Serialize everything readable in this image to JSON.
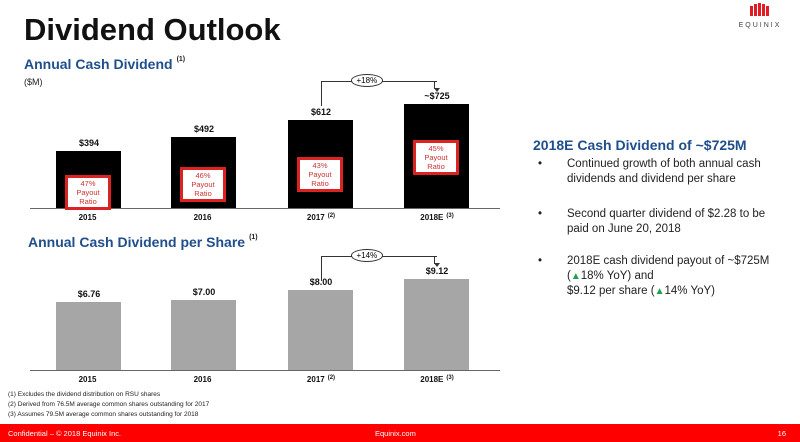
{
  "title": "Dividend Outlook",
  "logo": {
    "text": "EQUINIX",
    "color": "#e31b23"
  },
  "chart_data": [
    {
      "type": "bar",
      "title": "Annual Cash Dividend",
      "title_note": "(1)",
      "unit": "($M)",
      "categories": [
        "2015",
        "2016",
        "2017",
        "2018E"
      ],
      "category_notes": [
        "",
        "",
        "(2)",
        "(3)"
      ],
      "values": [
        394,
        492,
        612,
        725
      ],
      "value_labels": [
        "$394",
        "$492",
        "$612",
        "~$725"
      ],
      "payout": [
        "47%\nPayout\nRatio",
        "46%\nPayout\nRatio",
        "43%\nPayout\nRatio",
        "45%\nPayout\nRatio"
      ],
      "growth": "+18%",
      "bar_color": "#000000"
    },
    {
      "type": "bar",
      "title": "Annual Cash Dividend per Share",
      "title_note": "(1)",
      "categories": [
        "2015",
        "2016",
        "2017",
        "2018E"
      ],
      "category_notes": [
        "",
        "",
        "(2)",
        "(3)"
      ],
      "values": [
        6.76,
        7.0,
        8.0,
        9.12
      ],
      "value_labels": [
        "$6.76",
        "$7.00",
        "$8.00",
        "$9.12"
      ],
      "growth": "+14%",
      "bar_color": "#a6a6a6"
    }
  ],
  "right": {
    "heading": "2018E Cash Dividend of ~$725M",
    "bullets": [
      "Continued growth of both annual cash dividends and dividend per share",
      "Second quarter dividend of $2.28 to be paid on June 20, 2018"
    ],
    "b3": {
      "p1": "2018E cash dividend payout of ~$725M (",
      "p2": "18% YoY) and",
      "p3": "$9.12 per share (",
      "p4": "14% YoY)"
    }
  },
  "footnotes": [
    "(1) Excludes the dividend distribution on RSU shares",
    "(2) Derived from 76.5M average common shares outstanding for 2017",
    "(3) Assumes 79.5M average common shares outstanding for 2018"
  ],
  "footer": {
    "left": "Confidential – © 2018 Equinix Inc.",
    "center": "Equinix.com",
    "page": "16"
  }
}
